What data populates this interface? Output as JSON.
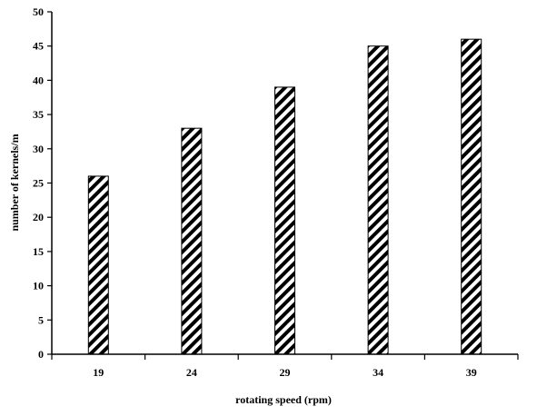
{
  "chart_data": {
    "type": "bar",
    "title": "",
    "xlabel": "rotating speed (rpm)",
    "ylabel": "number of kernels/m",
    "categories": [
      "19",
      "24",
      "29",
      "34",
      "39"
    ],
    "values": [
      26,
      33,
      39,
      45,
      46
    ],
    "ylim": [
      0,
      50
    ],
    "yticks": [
      "0",
      "5",
      "10",
      "15",
      "20",
      "25",
      "30",
      "35",
      "40",
      "45",
      "50"
    ],
    "grid": false,
    "legend": "none",
    "bar_pattern": "diagonal-stripes",
    "colors": {
      "stripe": "#000000",
      "bar_fill": "#ffffff",
      "axis": "#000000"
    }
  }
}
